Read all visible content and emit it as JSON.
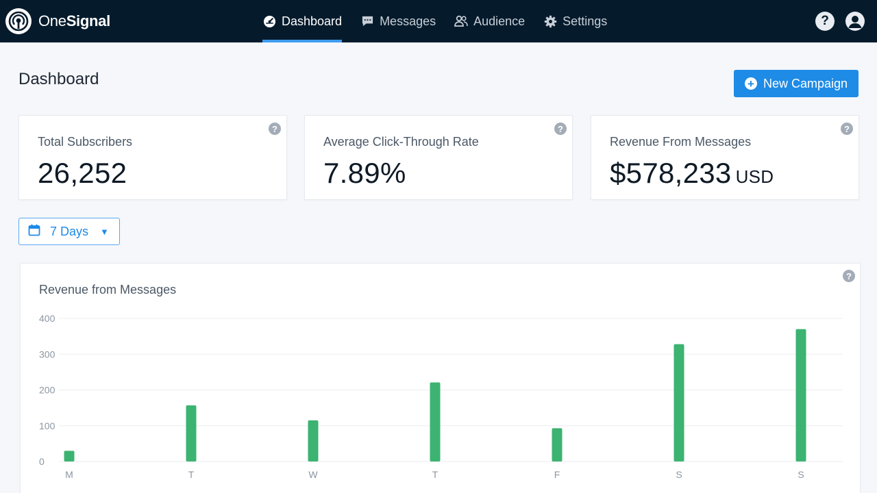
{
  "brand": {
    "name_part1": "One",
    "name_part2": "Signal"
  },
  "nav": {
    "items": [
      {
        "label": "Dashboard",
        "icon": "dashboard-icon",
        "active": true
      },
      {
        "label": "Messages",
        "icon": "message-icon",
        "active": false
      },
      {
        "label": "Audience",
        "icon": "audience-icon",
        "active": false
      },
      {
        "label": "Settings",
        "icon": "gear-icon",
        "active": false
      }
    ],
    "help_symbol": "?"
  },
  "page": {
    "title": "Dashboard",
    "new_campaign_label": "New Campaign"
  },
  "stats": [
    {
      "label": "Total Subscribers",
      "value": "26,252",
      "unit": ""
    },
    {
      "label": "Average Click-Through Rate",
      "value": "7.89%",
      "unit": ""
    },
    {
      "label": "Revenue From Messages",
      "value": "$578,233",
      "unit": "USD"
    }
  ],
  "range": {
    "label": "7 Days"
  },
  "colors": {
    "nav_bg": "#051b2c",
    "accent": "#1e8be6",
    "bar": "#3cb371"
  },
  "chart_data": {
    "type": "bar",
    "title": "Revenue from Messages",
    "categories": [
      "M",
      "T",
      "W",
      "T",
      "F",
      "S",
      "S"
    ],
    "values": [
      30,
      157,
      115,
      221,
      93,
      328,
      370
    ],
    "ylim": [
      0,
      400
    ],
    "yticks": [
      0,
      100,
      200,
      300,
      400
    ],
    "grid": true,
    "legend": "none"
  }
}
